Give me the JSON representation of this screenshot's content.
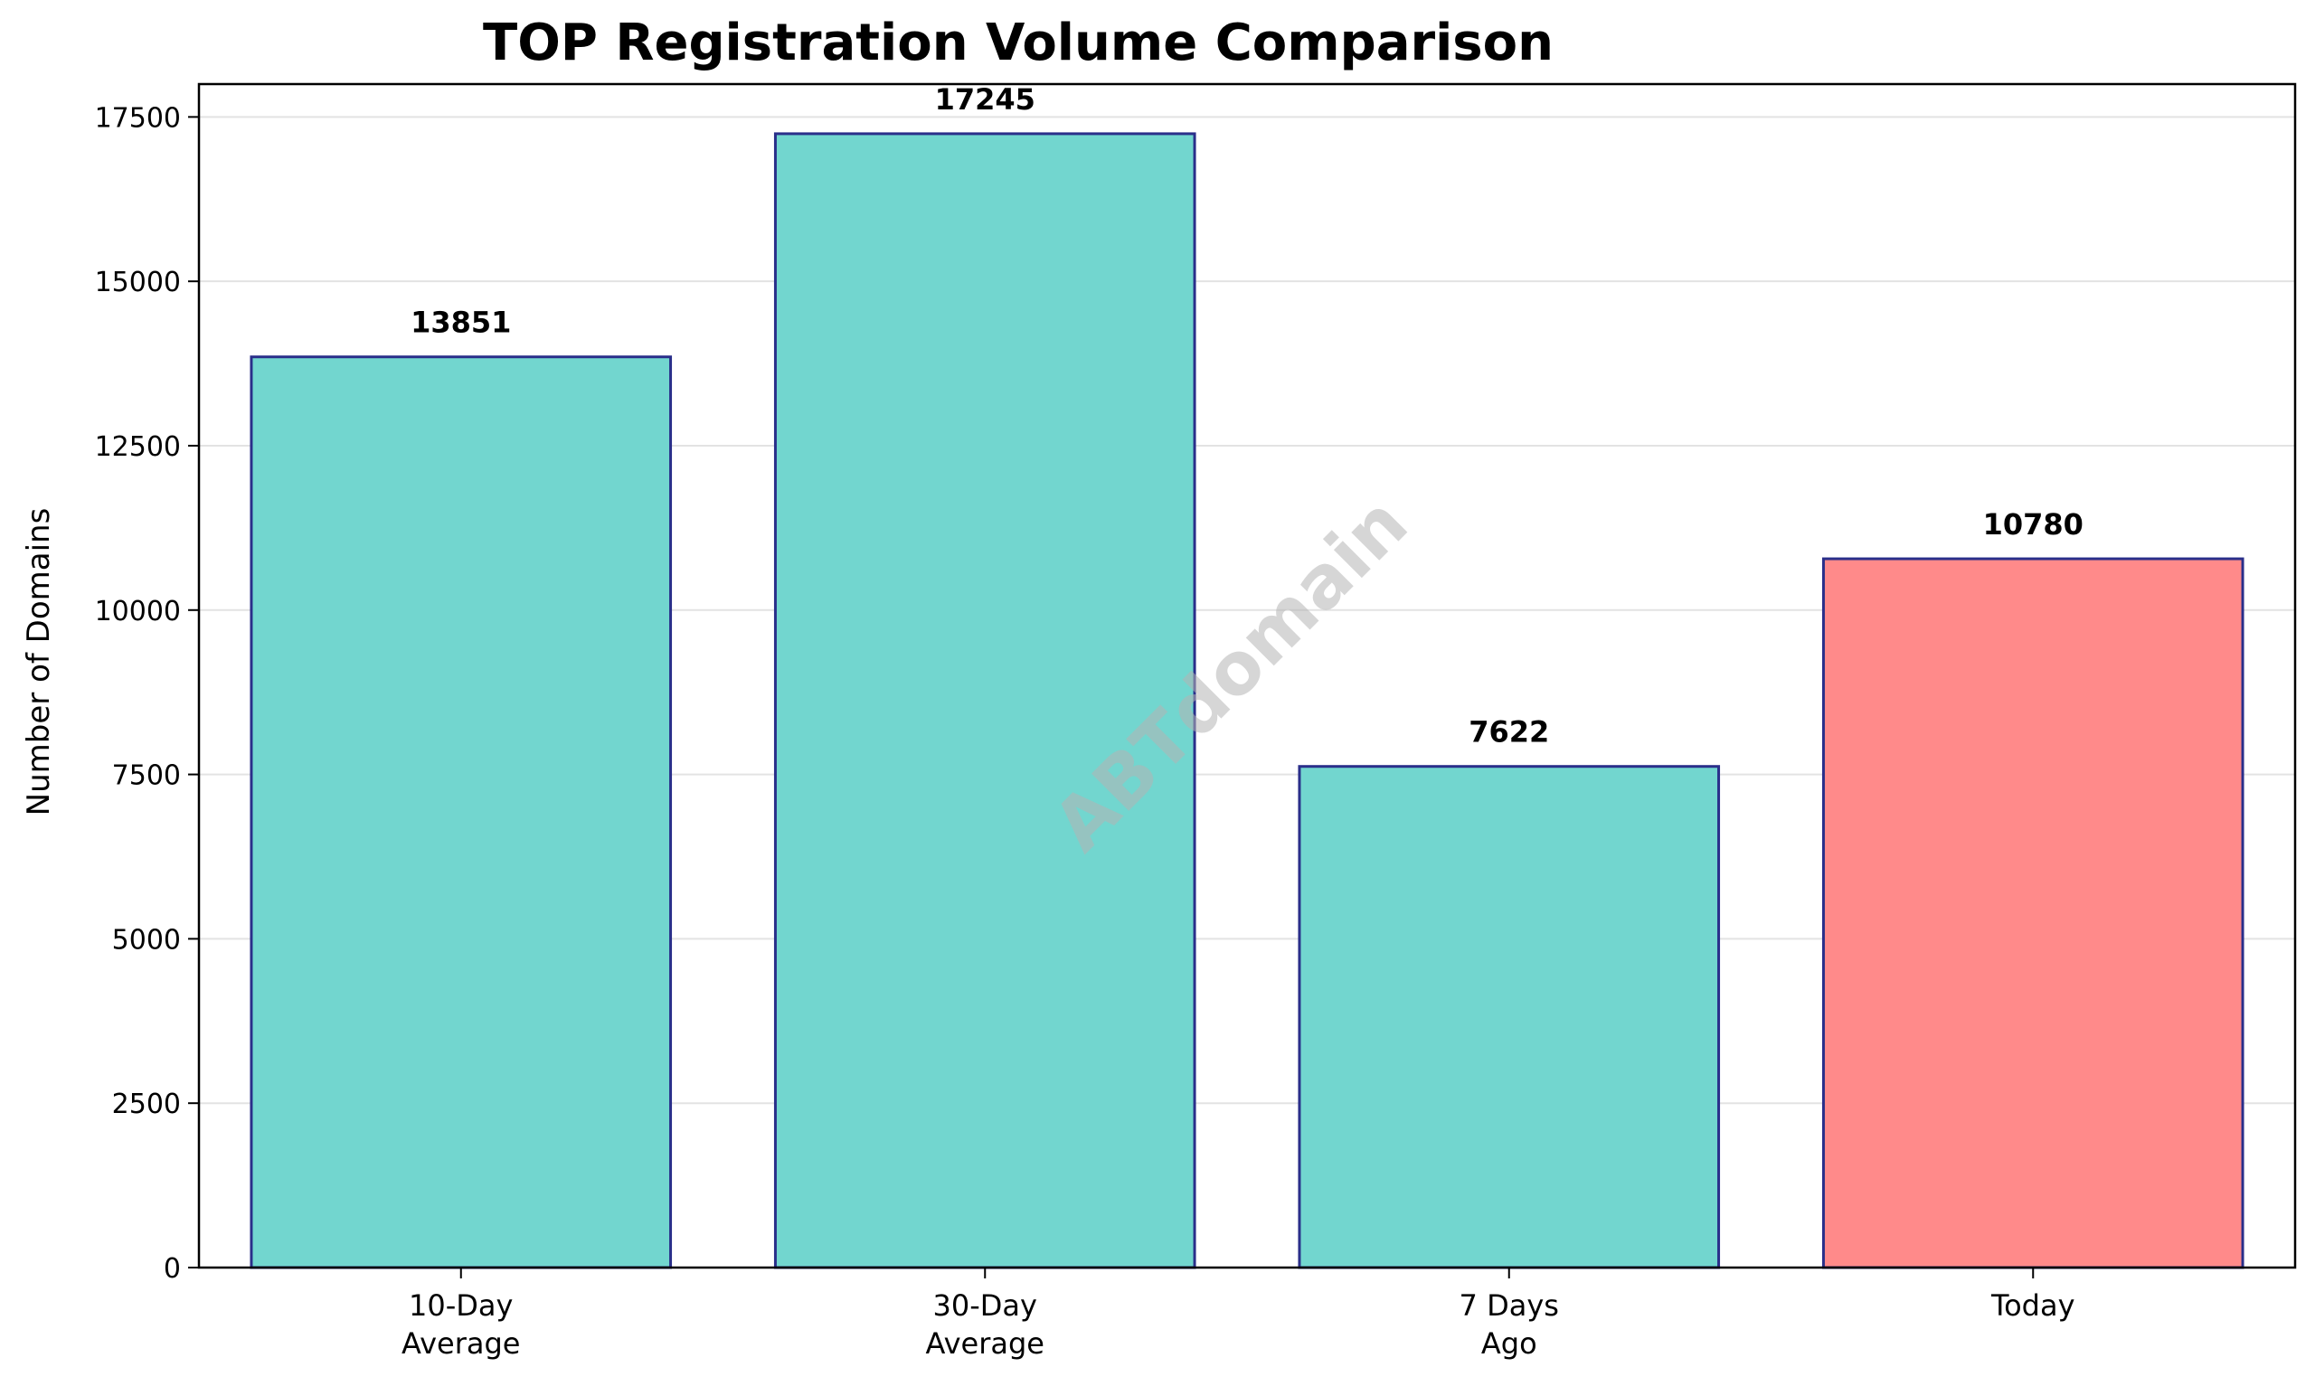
{
  "chart_data": {
    "type": "bar",
    "title": "TOP Registration Volume Comparison",
    "xlabel": "",
    "ylabel": "Number of Domains",
    "categories": [
      [
        "10-Day",
        "Average"
      ],
      [
        "30-Day",
        "Average"
      ],
      [
        "7 Days",
        "Ago"
      ],
      [
        "Today"
      ]
    ],
    "values": [
      13851,
      17245,
      7622,
      10780
    ],
    "data_labels": [
      "13851",
      "17245",
      "7622",
      "10780"
    ],
    "bar_colors": [
      "#72d6cf",
      "#72d6cf",
      "#72d6cf",
      "#ff8a8a"
    ],
    "bar_edge_color": "#2a2f8a",
    "ylim": [
      0,
      18000
    ],
    "yticks": [
      0,
      2500,
      5000,
      7500,
      10000,
      12500,
      15000,
      17500
    ],
    "ytick_labels": [
      "0",
      "2500",
      "5000",
      "7500",
      "10000",
      "12500",
      "15000",
      "17500"
    ],
    "grid": "y",
    "legend": "none",
    "watermark": "ABTdomain"
  }
}
